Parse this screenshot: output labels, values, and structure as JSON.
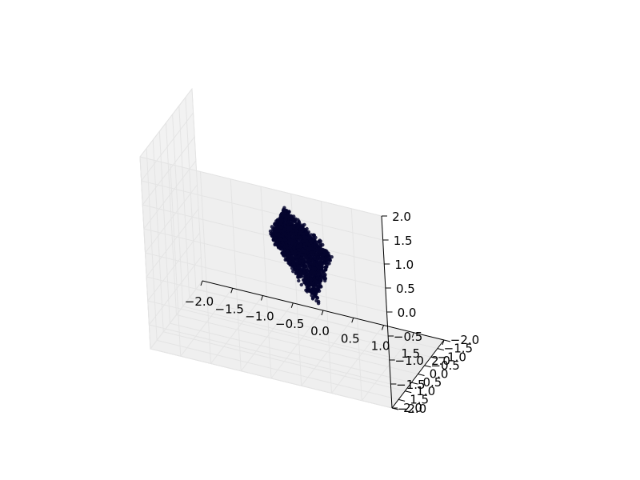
{
  "chart_data": {
    "type": "scatter",
    "projection": "3d",
    "title": "",
    "xlabel": "",
    "ylabel": "",
    "zlabel": "",
    "grid": true,
    "xlim": [
      -2.0,
      2.0
    ],
    "ylim": [
      -2.0,
      2.0
    ],
    "zlim": [
      -2.0,
      2.0
    ],
    "x_ticks": [
      "−2.0",
      "−1.5",
      "−1.0",
      "−0.5",
      "0.0",
      "0.5",
      "1.0",
      "1.5",
      "2.0"
    ],
    "y_ticks": [
      "−2.0",
      "−1.5",
      "−1.0",
      "−0.5",
      "0.0",
      "0.5",
      "1.0",
      "1.5",
      "2.0"
    ],
    "z_ticks": [
      "−2.0",
      "−1.5",
      "−1.0",
      "−0.5",
      "0.0",
      "0.5",
      "1.0",
      "1.5",
      "2.0"
    ],
    "marker_color": "#05052e",
    "pane_color": "#f2f2f2",
    "grid_color": "#e4e4e4",
    "point_cloud": {
      "approx_points": 1800,
      "x_range": [
        -0.6,
        0.4
      ],
      "y_range": [
        -1.2,
        0.0
      ],
      "z_range": [
        -1.0,
        0.4
      ],
      "description": "dense cluster near the center of the axes volume"
    }
  }
}
